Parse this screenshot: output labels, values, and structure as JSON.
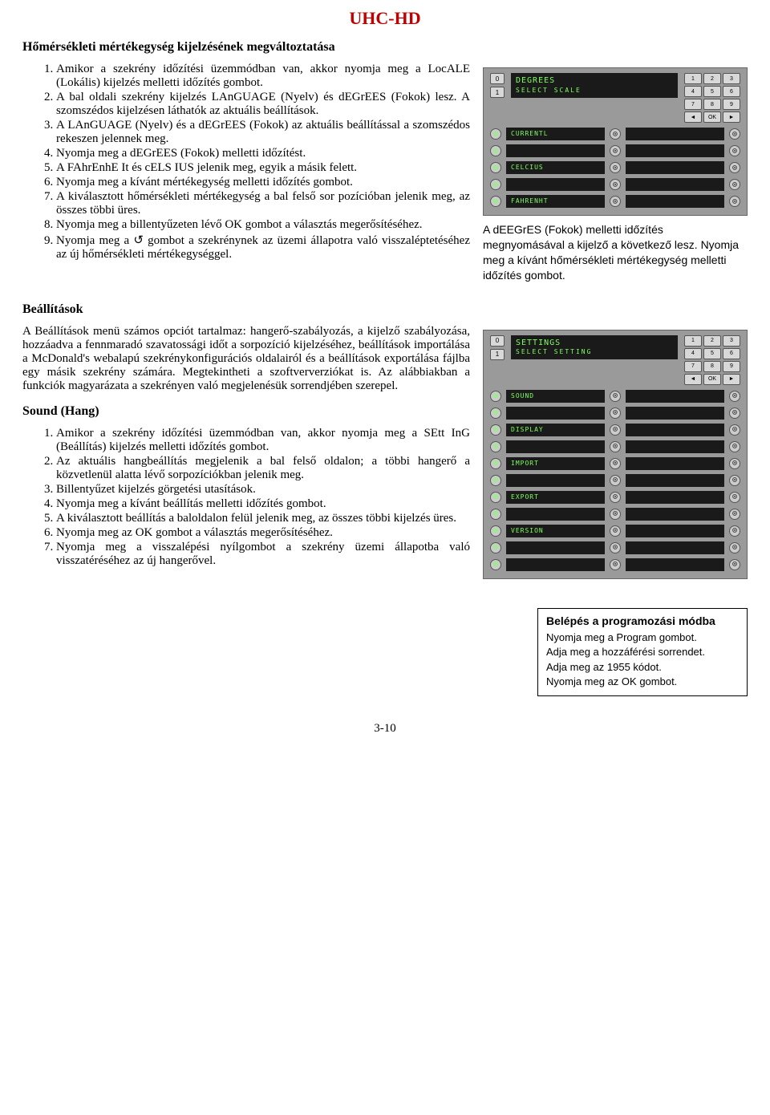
{
  "header": {
    "title": "UHC-HD"
  },
  "section_a": {
    "heading": "Hőmérsékleti mértékegység kijelzésének megváltoztatása",
    "list": [
      "Amikor a szekrény időzítési üzemmódban van, akkor nyomja meg a LocALE (Lokális) kijelzés melletti időzítés gombot.",
      "A bal oldali szekrény kijelzés LAnGUAGE (Nyelv) és dEGrEES (Fokok) lesz. A szomszédos kijelzésen láthatók az aktuális beállítások.",
      "A LAnGUAGE (Nyelv) és a dEGrEES (Fokok) az aktuális beállítással a szomszédos rekeszen jelennek meg.",
      "Nyomja meg a dEGrEES (Fokok) melletti időzítést.",
      "A FAhrEnhE It és cELS IUS jelenik meg, egyik a másik felett.",
      "Nyomja meg a kívánt mértékegység melletti időzítés gombot.",
      "A kiválasztott hőmérsékleti mértékegység a bal felső sor pozícióban jelenik meg, az összes többi üres.",
      "Nyomja meg a billentyűzeten lévő OK gombot a választás megerősítéséhez.",
      "Nyomja meg a ↺ gombot a szekrénynek az üzemi állapotra való visszaléptetéséhez az új hőmérsékleti mértékegységgel."
    ],
    "panel": {
      "lcd_line1": "DEGREES",
      "lcd_line2": "SELECT  SCALE",
      "keypad": [
        "1",
        "2",
        "3",
        "4",
        "5",
        "6",
        "7",
        "8",
        "9",
        "◄",
        "OK",
        "►"
      ],
      "left_nums": [
        "0",
        "1"
      ],
      "slots": [
        {
          "left": "⊙",
          "label1": "CURRENTL",
          "label2": ""
        },
        {
          "left": "⊙",
          "label1": "",
          "label2": ""
        },
        {
          "left": "⊙",
          "label1": "CELCIUS",
          "label2": ""
        },
        {
          "left": "⊙",
          "label1": "",
          "label2": ""
        },
        {
          "left": "⊙",
          "label1": "FAHRENHT",
          "label2": ""
        }
      ]
    },
    "caption": "A dEEGrES (Fokok) melletti időzítés megnyomásával a kijelző a következő lesz. Nyomja meg a kívánt hőmérsékleti mértékegység melletti időzítés gombot."
  },
  "section_b": {
    "heading": "Beállítások",
    "para": "A Beállítások menü számos opciót tartalmaz: hangerő-szabályozás, a kijelző szabályozása, hozzáadva a fennmaradó szavatossági időt a sorpozíció kijelzéséhez, beállítások importálása a McDonald's webalapú szekrénykonfigurációs oldalairól és a beállítások exportálása fájlba egy másik szekrény számára. Megtekintheti a szoftververziókat is. Az alábbiakban a funkciók magyarázata a szekrényen való megjelenésük sorrendjében szerepel.",
    "panel": {
      "lcd_line1": "SETTINGS",
      "lcd_line2": "SELECT SETTING",
      "keypad": [
        "1",
        "2",
        "3",
        "4",
        "5",
        "6",
        "7",
        "8",
        "9",
        "◄",
        "OK",
        "►"
      ],
      "left_nums": [
        "0",
        "1"
      ],
      "slots": [
        {
          "left": "⊙",
          "label1": "SOUND",
          "label2": ""
        },
        {
          "left": "⊙",
          "label1": "",
          "label2": ""
        },
        {
          "left": "⊙",
          "label1": "DISPLAY",
          "label2": ""
        },
        {
          "left": "⊙",
          "label1": "",
          "label2": ""
        },
        {
          "left": "⊙",
          "label1": "IMPORT",
          "label2": ""
        },
        {
          "left": "⊙",
          "label1": "",
          "label2": ""
        },
        {
          "left": "⊙",
          "label1": "EXPORT",
          "label2": ""
        },
        {
          "left": "⊙",
          "label1": "",
          "label2": ""
        },
        {
          "left": "⊙",
          "label1": "VERSION",
          "label2": ""
        },
        {
          "left": "⊙",
          "label1": "",
          "label2": ""
        },
        {
          "left": "⊙",
          "label1": "",
          "label2": ""
        }
      ]
    }
  },
  "section_c": {
    "heading": "Sound (Hang)",
    "list": [
      "Amikor a szekrény időzítési üzemmódban van, akkor nyomja meg a SEtt InG (Beállítás) kijelzés melletti időzítés gombot.",
      "Az aktuális hangbeállítás megjelenik a bal felső oldalon; a többi hangerő a közvetlenül alatta lévő sorpozíciókban jelenik meg.",
      "Billentyűzet kijelzés görgetési utasítások.",
      "Nyomja meg a kívánt beállítás melletti időzítés gombot.",
      "A kiválasztott beállítás a baloldalon felül jelenik meg, az összes többi kijelzés üres.",
      "Nyomja meg az OK gombot a választás megerősítéséhez.",
      "Nyomja meg a visszalépési nyílgombot a szekrény üzemi állapotba való visszatéréséhez az új hangerővel."
    ]
  },
  "sidebox": {
    "title": "Belépés a programozási módba",
    "lines": [
      "Nyomja meg a Program gombot.",
      "Adja meg a hozzáférési sorrendet.",
      "Adja meg az 1955 kódot.",
      "Nyomja meg az OK gombot."
    ]
  },
  "footer": {
    "page": "3-10"
  }
}
